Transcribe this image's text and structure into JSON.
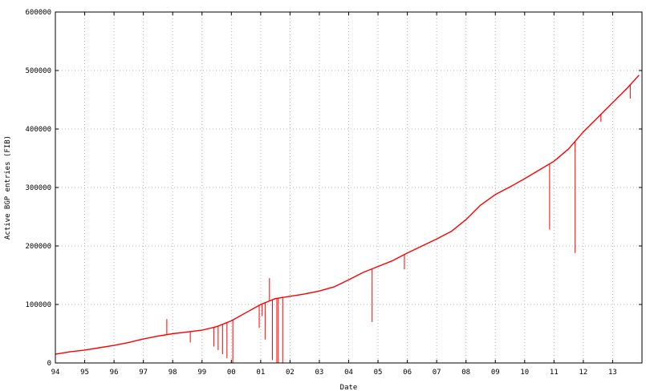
{
  "chart_data": {
    "type": "line",
    "title": "",
    "xlabel": "Date",
    "ylabel": "Active BGP entries (FIB)",
    "xlim": [
      1994,
      2014
    ],
    "ylim": [
      0,
      600000
    ],
    "grid": true,
    "legend": "none",
    "x_ticks": [
      {
        "value": 1994,
        "label": "94"
      },
      {
        "value": 1995,
        "label": "95"
      },
      {
        "value": 1996,
        "label": "96"
      },
      {
        "value": 1997,
        "label": "97"
      },
      {
        "value": 1998,
        "label": "98"
      },
      {
        "value": 1999,
        "label": "99"
      },
      {
        "value": 2000,
        "label": "00"
      },
      {
        "value": 2001,
        "label": "01"
      },
      {
        "value": 2002,
        "label": "02"
      },
      {
        "value": 2003,
        "label": "03"
      },
      {
        "value": 2004,
        "label": "04"
      },
      {
        "value": 2005,
        "label": "05"
      },
      {
        "value": 2006,
        "label": "06"
      },
      {
        "value": 2007,
        "label": "07"
      },
      {
        "value": 2008,
        "label": "08"
      },
      {
        "value": 2009,
        "label": "09"
      },
      {
        "value": 2010,
        "label": "10"
      },
      {
        "value": 2011,
        "label": "11"
      },
      {
        "value": 2012,
        "label": "12"
      },
      {
        "value": 2013,
        "label": "13"
      }
    ],
    "y_ticks": [
      {
        "value": 0,
        "label": "0"
      },
      {
        "value": 100000,
        "label": "100000"
      },
      {
        "value": 200000,
        "label": "200000"
      },
      {
        "value": 300000,
        "label": "300000"
      },
      {
        "value": 400000,
        "label": "400000"
      },
      {
        "value": 500000,
        "label": "500000"
      },
      {
        "value": 600000,
        "label": "600000"
      }
    ],
    "series": [
      {
        "color": "#ff0000",
        "x": [
          1994.0,
          1994.5,
          1995.0,
          1995.5,
          1996.0,
          1996.5,
          1997.0,
          1997.5,
          1998.0,
          1998.5,
          1999.0,
          1999.5,
          2000.0,
          2000.5,
          2001.0,
          2001.5,
          2002.0,
          2002.5,
          2003.0,
          2003.5,
          2004.0,
          2004.5,
          2005.0,
          2005.5,
          2006.0,
          2006.5,
          2007.0,
          2007.5,
          2008.0,
          2008.5,
          2009.0,
          2009.5,
          2010.0,
          2010.5,
          2011.0,
          2011.5,
          2012.0,
          2012.5,
          2013.0,
          2013.5,
          2013.9
        ],
        "y": [
          15000,
          19000,
          22000,
          26000,
          30000,
          35000,
          41000,
          46000,
          50000,
          53000,
          56000,
          62000,
          72000,
          86000,
          100000,
          110000,
          114000,
          118000,
          123000,
          130000,
          142000,
          155000,
          165000,
          175000,
          188000,
          200000,
          212000,
          225000,
          245000,
          270000,
          288000,
          301000,
          315000,
          330000,
          345000,
          366000,
          395000,
          420000,
          445000,
          470000,
          492000
        ]
      }
    ],
    "spikes": [
      {
        "x": 1997.8,
        "y": 75000
      },
      {
        "x": 1998.6,
        "y": 35000
      },
      {
        "x": 1999.4,
        "y": 28000
      },
      {
        "x": 1999.55,
        "y": 22000
      },
      {
        "x": 1999.7,
        "y": 15000
      },
      {
        "x": 1999.85,
        "y": 8000
      },
      {
        "x": 2000.05,
        "y": 0
      },
      {
        "x": 2000.95,
        "y": 60000
      },
      {
        "x": 2001.05,
        "y": 80000
      },
      {
        "x": 2001.15,
        "y": 40000
      },
      {
        "x": 2001.3,
        "y": 145000
      },
      {
        "x": 2001.4,
        "y": 5000
      },
      {
        "x": 2001.55,
        "y": 0
      },
      {
        "x": 2001.6,
        "y": 0
      },
      {
        "x": 2001.75,
        "y": 0
      },
      {
        "x": 2004.8,
        "y": 70000
      },
      {
        "x": 2005.9,
        "y": 160000
      },
      {
        "x": 2010.85,
        "y": 228000
      },
      {
        "x": 2011.72,
        "y": 188000
      },
      {
        "x": 2012.6,
        "y": 412000
      },
      {
        "x": 2013.6,
        "y": 452000
      }
    ]
  }
}
